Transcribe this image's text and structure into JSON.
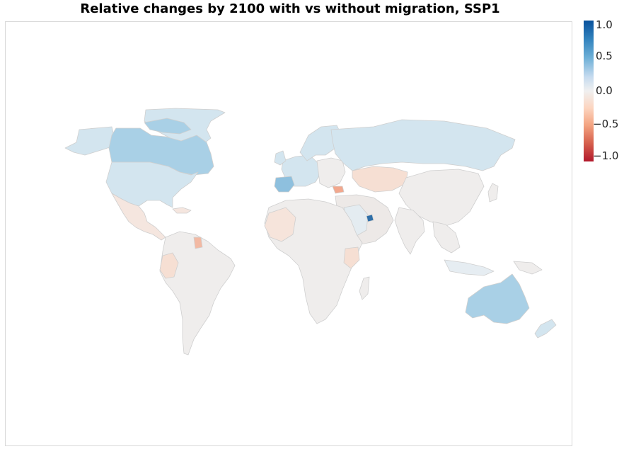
{
  "title": "Relative changes by 2100 with vs without migration, SSP1",
  "colorbar": {
    "ticks": [
      "1.0",
      "0.5",
      "0.0",
      "−0.5",
      "−1.0"
    ],
    "min": -1.0,
    "max": 1.0
  },
  "colors": {
    "strong_positive": "#08519c",
    "positive": "#a9d0e6",
    "light_positive": "#d3e5ef",
    "neutral": "#efedec",
    "light_negative": "#f8e1d6",
    "negative": "#f2b9a3"
  },
  "map_data": {
    "type": "choropleth",
    "values": [
      {
        "region": "Canada",
        "value": 0.5
      },
      {
        "region": "United States",
        "value": 0.3
      },
      {
        "region": "Greenland",
        "value": 0.3
      },
      {
        "region": "Alaska",
        "value": 0.3
      },
      {
        "region": "Australia",
        "value": 0.5
      },
      {
        "region": "Russia",
        "value": 0.3
      },
      {
        "region": "Spain",
        "value": 0.6
      },
      {
        "region": "United Arab Emirates",
        "value": 1.0
      },
      {
        "region": "Qatar",
        "value": 1.0
      },
      {
        "region": "Scandinavia",
        "value": 0.3
      },
      {
        "region": "Western Europe",
        "value": 0.3
      },
      {
        "region": "Kazakhstan",
        "value": -0.15
      },
      {
        "region": "Armenia",
        "value": -0.4
      },
      {
        "region": "Guyana",
        "value": -0.4
      },
      {
        "region": "Latin America",
        "value": 0.0
      },
      {
        "region": "Africa",
        "value": 0.0
      },
      {
        "region": "Asia",
        "value": 0.0
      }
    ]
  }
}
